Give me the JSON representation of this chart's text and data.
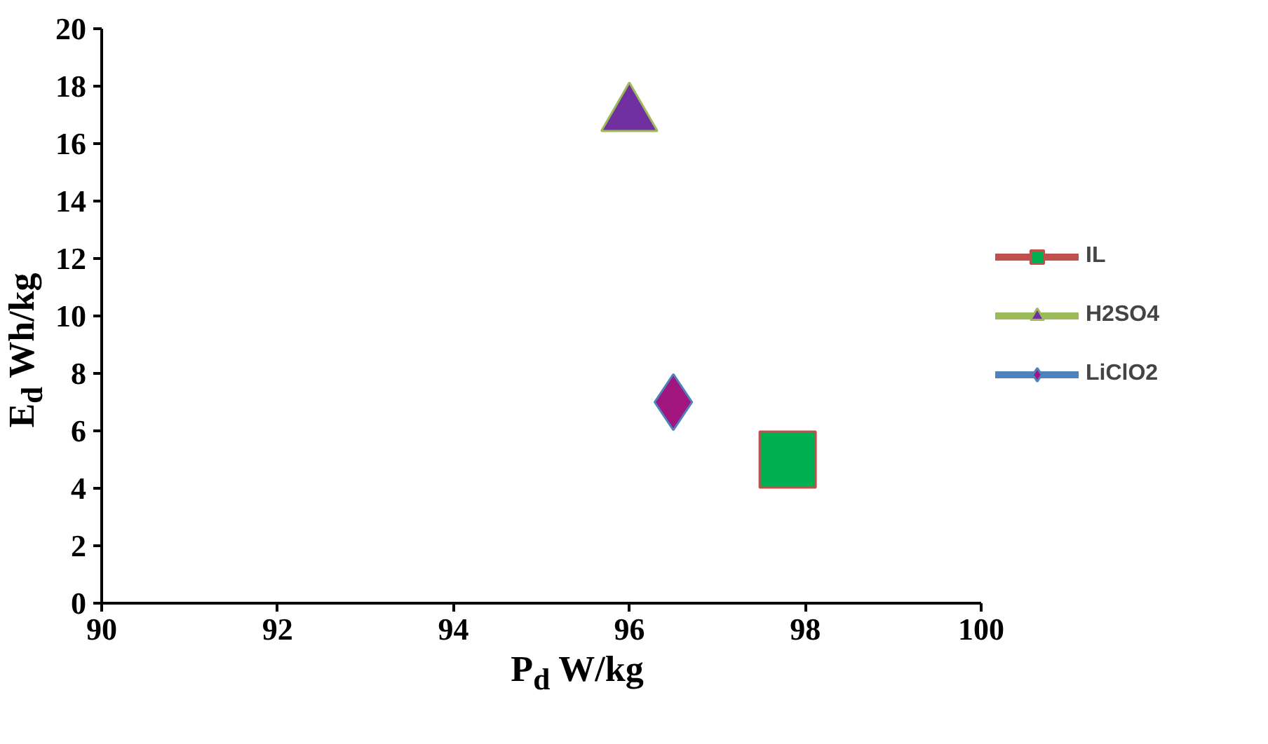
{
  "chart_data": {
    "type": "scatter",
    "xlabel": "P$_{d}$ W/kg",
    "ylabel": "E$_{d}$ Wh/kg",
    "xlim": [
      90,
      100
    ],
    "ylim": [
      0,
      20
    ],
    "xticks": [
      90,
      92,
      94,
      96,
      98,
      100
    ],
    "yticks": [
      0,
      2,
      4,
      6,
      8,
      10,
      12,
      14,
      16,
      18,
      20
    ],
    "grid": false,
    "legend": "right",
    "series": [
      {
        "name": "IL",
        "color": "#00b050",
        "marker": "square",
        "x": [
          97.8
        ],
        "values": [
          5
        ]
      },
      {
        "name": "H2SO4",
        "color": "#7030a0",
        "marker": "triangle",
        "x": [
          96
        ],
        "values": [
          17
        ]
      },
      {
        "name": "LiClO2",
        "color": "#a0157e",
        "marker": "diamond",
        "x": [
          96.5
        ],
        "values": [
          7
        ]
      }
    ]
  }
}
